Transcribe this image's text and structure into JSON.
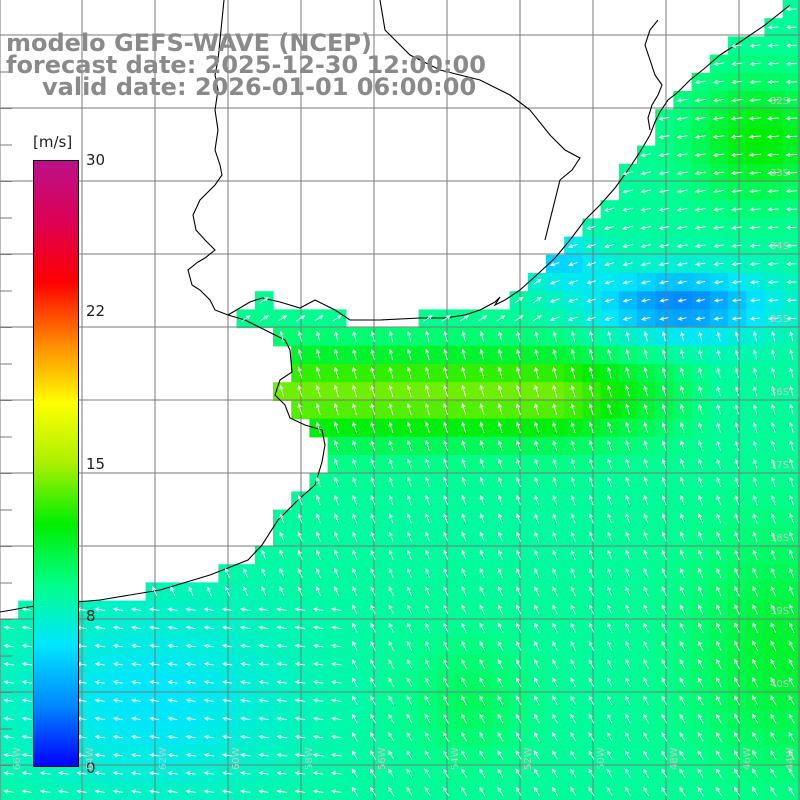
{
  "title": {
    "line1": "modelo GEFS-WAVE (NCEP)",
    "line2": "forecast date: 2025-12-30 12:00:00",
    "line3": "valid date: 2026-01-01 06:00:00"
  },
  "colorbar": {
    "unit": "[m/s]",
    "ticks": [
      {
        "label": "30",
        "value": 30
      },
      {
        "label": "22",
        "value": 22
      },
      {
        "label": "15",
        "value": 15
      },
      {
        "label": "8",
        "value": 8
      },
      {
        "label": "0",
        "value": 0
      }
    ],
    "stops": [
      "#0000ff",
      "#0088ff",
      "#00e6ff",
      "#00ff88",
      "#00ee00",
      "#aaf000",
      "#ffff00",
      "#ff8800",
      "#ff0000",
      "#dd0055",
      "#bb1188"
    ]
  },
  "chart_data": {
    "type": "heatmap",
    "variable": "wind speed with direction arrows",
    "unit": "m/s",
    "value_range": [
      0,
      30
    ],
    "lat_labels": [
      "32S",
      "33S",
      "34S",
      "35S",
      "36S",
      "37S",
      "38S",
      "39S",
      "40S"
    ],
    "lon_labels": [
      "66W",
      "64W",
      "62W",
      "60W",
      "58W",
      "56W",
      "54W",
      "52W",
      "50W",
      "48W",
      "46W",
      "44W"
    ],
    "grid": true
  }
}
